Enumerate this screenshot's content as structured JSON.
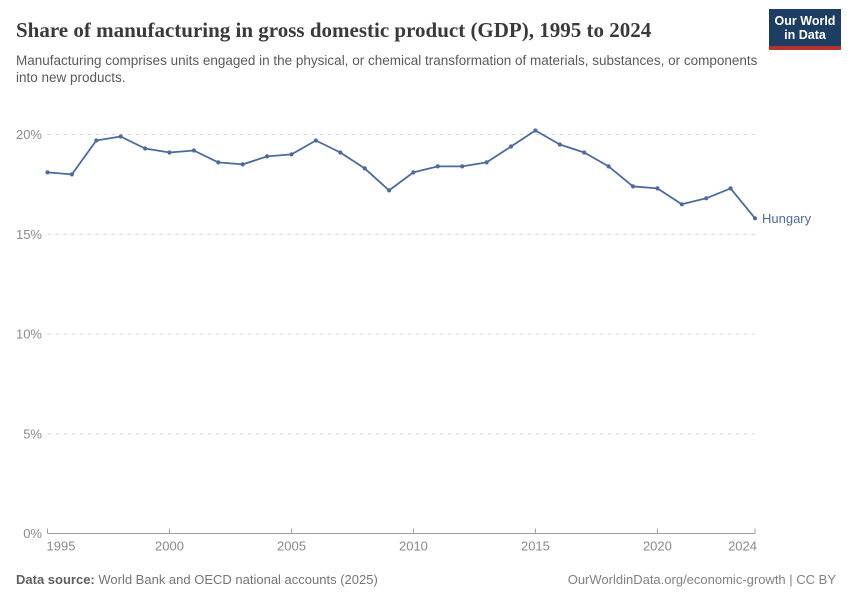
{
  "header": {
    "title": "Share of manufacturing in gross domestic product (GDP), 1995 to 2024",
    "subtitle": "Manufacturing comprises units engaged in the physical, or chemical transformation of materials, substances, or components into new products.",
    "logo": {
      "line1": "Our World",
      "line2": "in Data",
      "bg_color": "#1d3d63",
      "accent_color": "#b5332b",
      "text_color": "#ffffff"
    }
  },
  "chart_data": {
    "type": "line",
    "title": "Share of manufacturing in gross domestic product (GDP), 1995 to 2024",
    "x": [
      1995,
      1996,
      1997,
      1998,
      1999,
      2000,
      2001,
      2002,
      2003,
      2004,
      2005,
      2006,
      2007,
      2008,
      2009,
      2010,
      2011,
      2012,
      2013,
      2014,
      2015,
      2016,
      2017,
      2018,
      2019,
      2020,
      2021,
      2022,
      2023,
      2024
    ],
    "series": [
      {
        "name": "Hungary",
        "color": "#4c6a9c",
        "values": [
          18.1,
          18.0,
          19.7,
          19.9,
          19.3,
          19.1,
          19.2,
          18.6,
          18.5,
          18.9,
          19.0,
          19.7,
          19.1,
          18.3,
          17.2,
          18.1,
          18.4,
          18.4,
          18.6,
          19.4,
          20.2,
          19.5,
          19.1,
          18.4,
          17.4,
          17.3,
          16.5,
          16.8,
          17.3,
          15.8
        ]
      }
    ],
    "xlim": [
      1995,
      2024
    ],
    "ylim": [
      0,
      21
    ],
    "xticks": [
      1995,
      2000,
      2005,
      2010,
      2015,
      2020,
      2024
    ],
    "yticks": [
      0,
      5,
      10,
      15,
      20
    ],
    "ytick_suffix": "%",
    "grid": "horizontal-dashed",
    "grid_color": "#d8d8d8",
    "axis_color": "#a0a0a0",
    "tick_label_color": "#8a8a8a",
    "legend_position": "end-of-line-label"
  },
  "footer": {
    "source_label": "Data source:",
    "source_text": " World Bank and OECD national accounts (2025)",
    "link": "OurWorldinData.org/economic-growth | CC BY"
  }
}
